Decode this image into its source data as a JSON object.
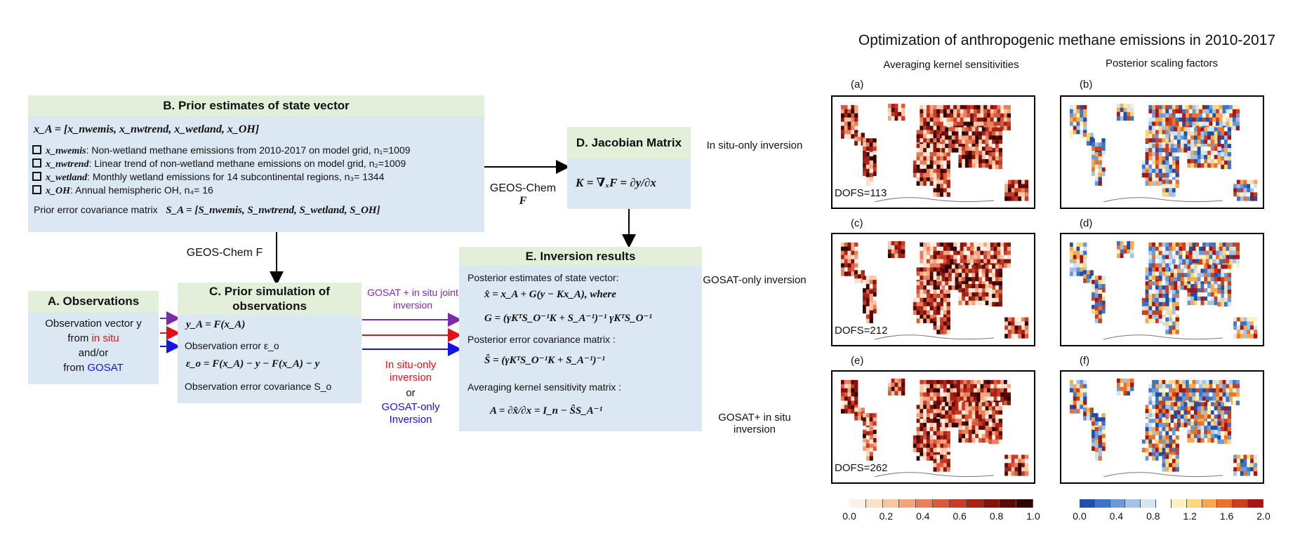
{
  "diagram": {
    "box_b": {
      "title": "B. Prior estimates of state vector",
      "state_vector": "x_A = [x_nwemis, x_nwtrend, x_wetland, x_OH]",
      "items": [
        {
          "sym": "x_nwemis",
          "text": ": Non-wetland methane emissions from 2010-2017 on model grid, n₁=1009"
        },
        {
          "sym": "x_nwtrend",
          "text": ": Linear trend of non-wetland methane emissions on model grid, n₂=1009"
        },
        {
          "sym": "x_wetland",
          "text": ": Monthly wetland emissions for 14 subcontinental regions, n₃= 1344"
        },
        {
          "sym": "x_OH",
          "text": ": Annual hemispheric OH, n₄= 16"
        }
      ],
      "prior_cov_label": "Prior error covariance matrix",
      "prior_cov_eq": "S_A = [S_nwemis, S_nwtrend, S_wetland, S_OH]"
    },
    "box_d": {
      "title": "D. Jacobian Matrix",
      "eq": "K = ∇ₓF = ∂y/∂x"
    },
    "box_a": {
      "title": "A. Observations",
      "line1": "Observation vector y",
      "line2_pre": "from ",
      "line2_red": "in situ",
      "line3": "and/or",
      "line4_pre": "from ",
      "line4_blue": "GOSAT"
    },
    "box_c": {
      "title": "C. Prior simulation of observations",
      "eq1": "y_A = F(x_A)",
      "err_label": "Observation error ε_o",
      "eq2": "ε_o = F(x_A) − y − F(x_A) − y",
      "cov_label": "Observation error covariance S_o"
    },
    "box_e": {
      "title": "E. Inversion results",
      "post_label": "Posterior estimates of state vector:",
      "eq1": "x̂ = x_A + G(y − Kx_A), where",
      "eq2": "G = (γKᵀS_O⁻¹K + S_A⁻¹)⁻¹ γKᵀS_O⁻¹",
      "post_cov_label": "Posterior error covariance matrix :",
      "eq3": "Ŝ = (γKᵀS_O⁻¹K + S_A⁻¹)⁻¹",
      "avk_label": "Averaging kernel sensitivity matrix :",
      "eq4": "A = ∂x̂/∂x = I_n − ŜS_A⁻¹"
    },
    "labels": {
      "geos_chem_right": "GEOS-Chem",
      "geos_chem_right_f": "F",
      "geos_chem_down": "GEOS-Chem F",
      "joint": "GOSAT + in situ joint inversion",
      "insitu_only": "In situ-only inversion",
      "or": "or",
      "gosat_only": "GOSAT-only Inversion"
    }
  },
  "figure": {
    "title": "Optimization of anthropogenic methane emissions in 2010-2017",
    "col1": "Averaging kernel sensitivities",
    "col2": "Posterior scaling factors",
    "rows": [
      {
        "label": "In situ-only inversion",
        "dofs": "DOFS=113",
        "a": "(a)",
        "b": "(b)"
      },
      {
        "label": "GOSAT-only inversion",
        "dofs": "DOFS=212",
        "a": "(c)",
        "b": "(d)"
      },
      {
        "label": "GOSAT+ in situ inversion",
        "dofs": "DOFS=262",
        "a": "(e)",
        "b": "(f)"
      }
    ],
    "cbar1_ticks": [
      "0.0",
      "0.2",
      "0.4",
      "0.6",
      "0.8",
      "1.0"
    ],
    "cbar2_ticks": [
      "0.0",
      "0.4",
      "0.8",
      "1.2",
      "1.6",
      "2.0"
    ],
    "colors": {
      "seq": [
        "#fdf0e6",
        "#fbe0cc",
        "#f8c8a6",
        "#f3a57d",
        "#ea805a",
        "#dc5a3c",
        "#c83b28",
        "#a92216",
        "#86140e",
        "#5c0a08",
        "#2e0504"
      ],
      "div": [
        "#1f4fa8",
        "#3f74c4",
        "#6b9ad6",
        "#a2c3e6",
        "#d3e4f3",
        "#ffffff",
        "#fdf1c0",
        "#fcd77f",
        "#f6a94e",
        "#e8732f",
        "#c94020",
        "#a51616"
      ]
    }
  }
}
